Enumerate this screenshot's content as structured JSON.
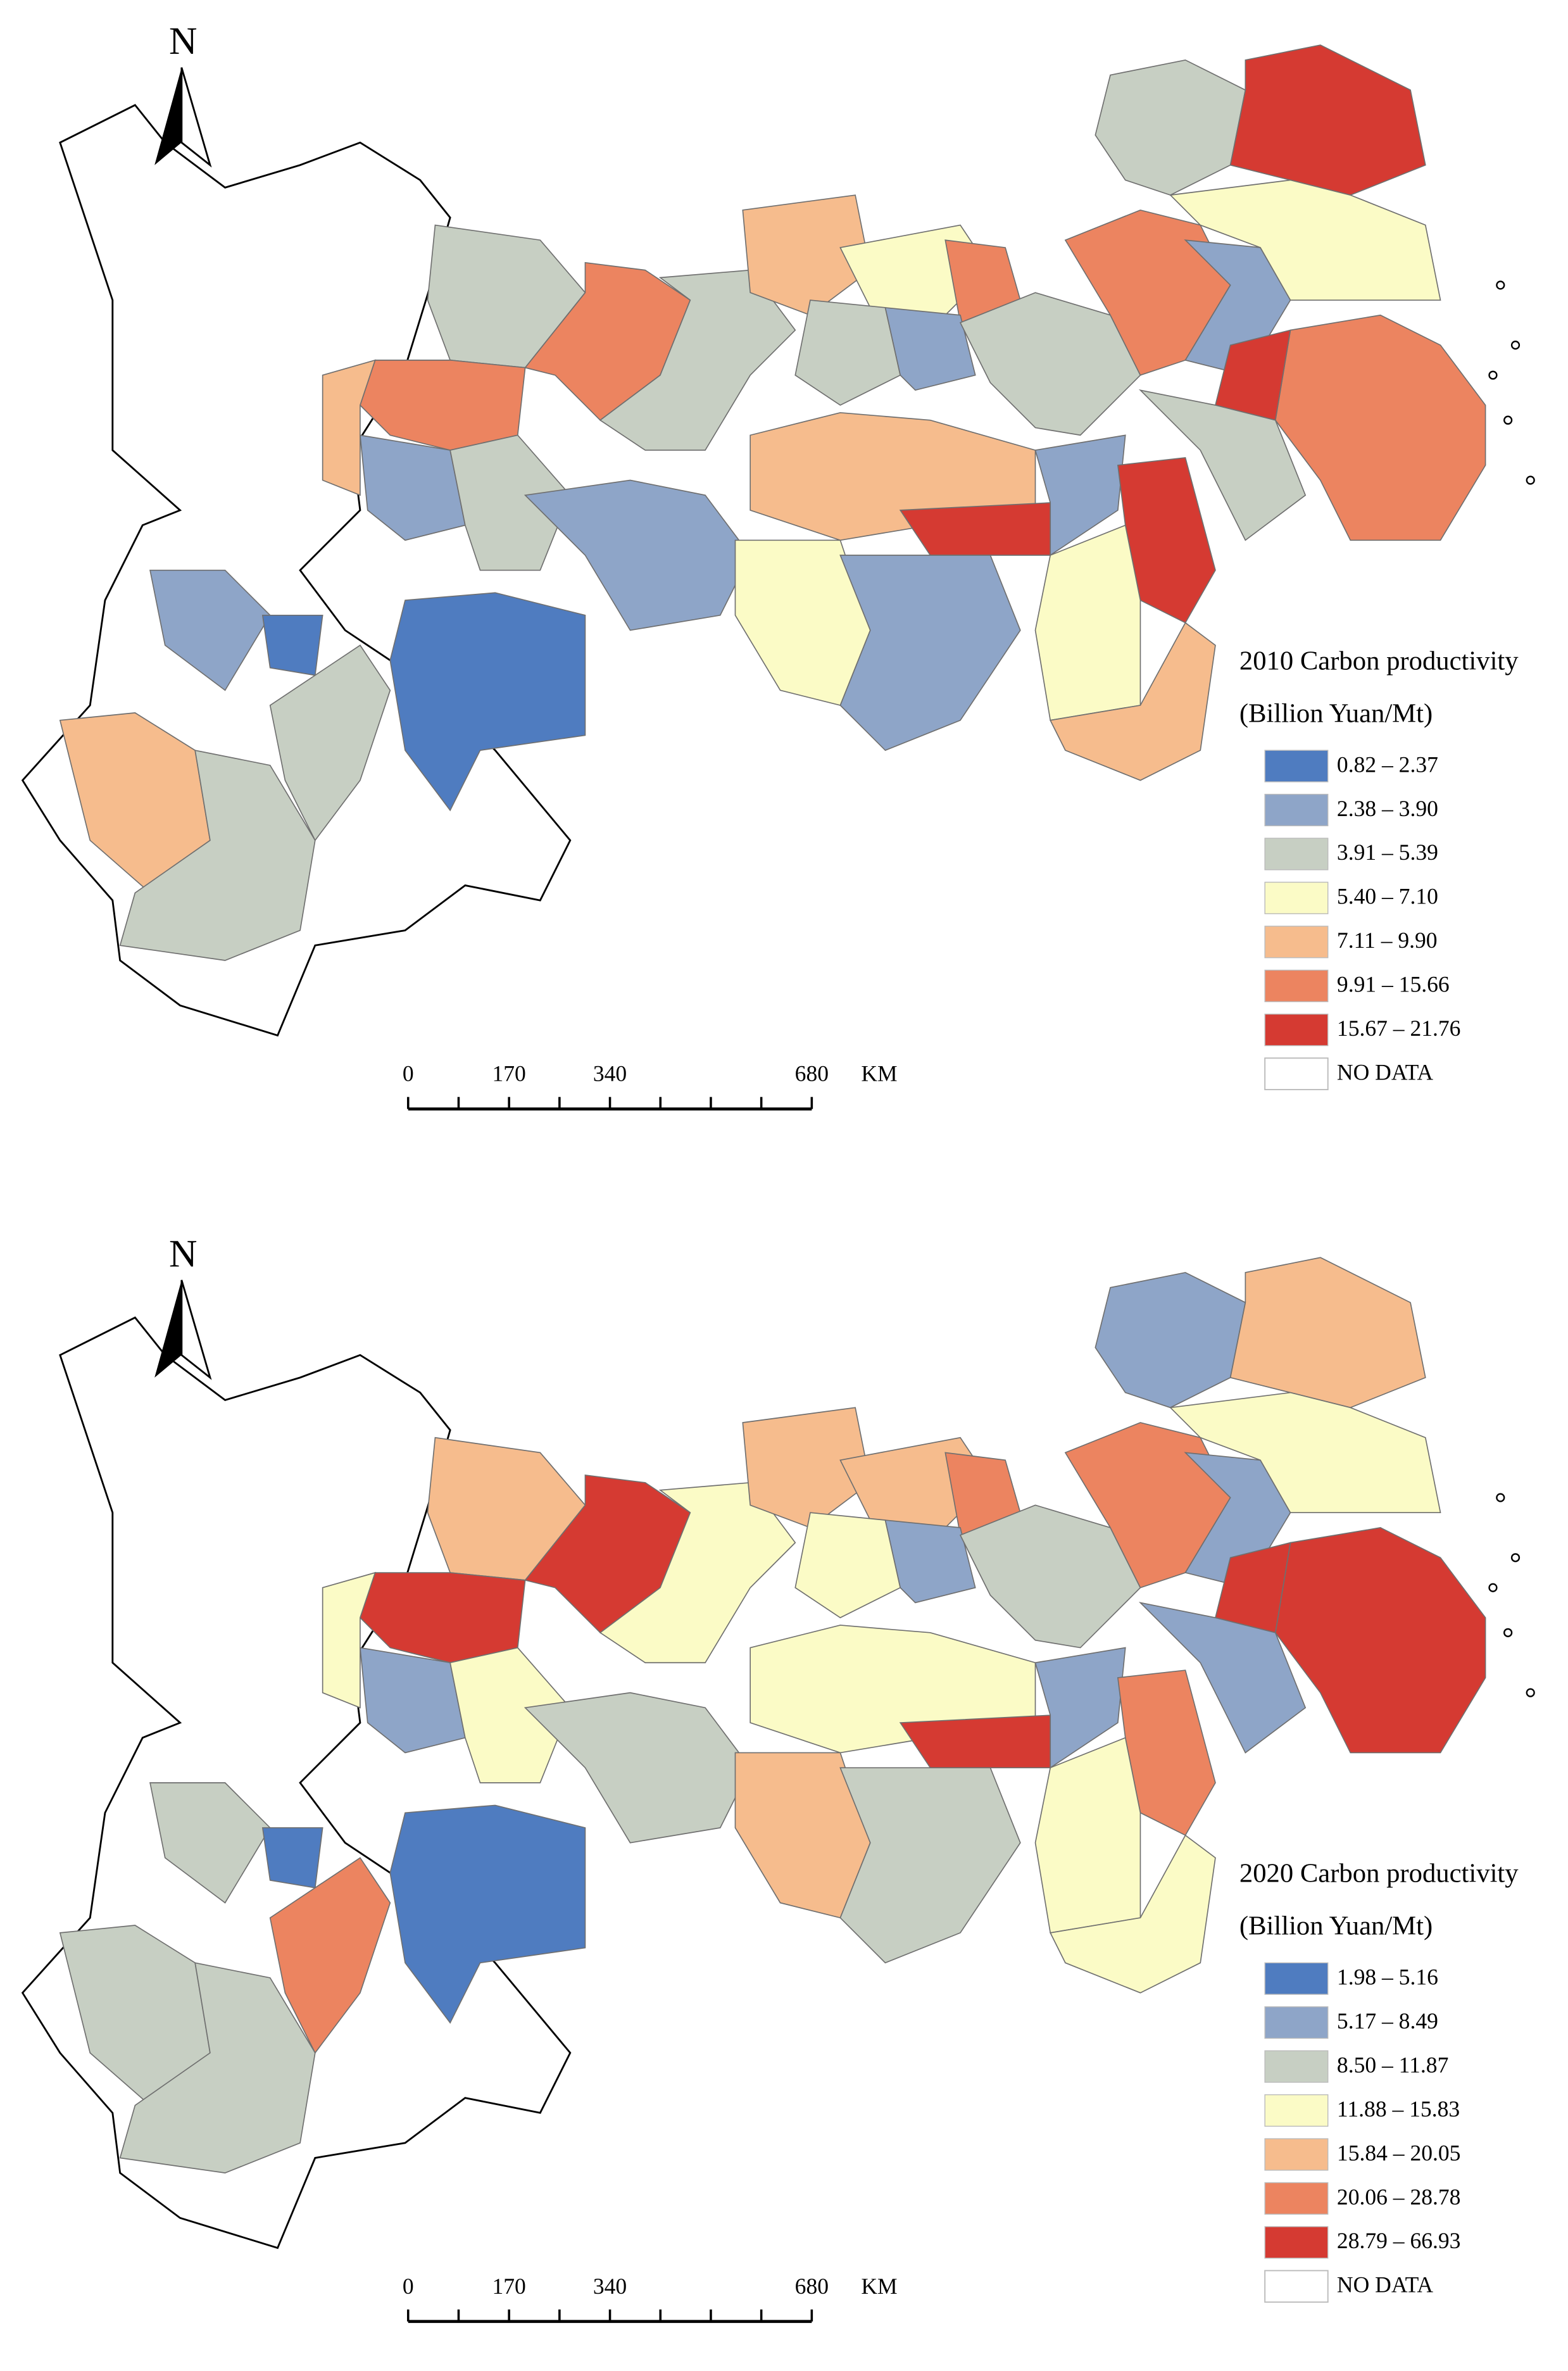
{
  "maps": [
    {
      "north": "N",
      "scale_bar": {
        "ticks": [
          0,
          170,
          340,
          680
        ],
        "unit": "KM"
      },
      "legend": {
        "title": "2010 Carbon productivity",
        "unit": "(Billion Yuan/Mt)",
        "classes": [
          {
            "label": "0.82 – 2.37",
            "color": "#4f7cc0"
          },
          {
            "label": "2.38 – 3.90",
            "color": "#8ea5c8"
          },
          {
            "label": "3.91 – 5.39",
            "color": "#c7cfc3"
          },
          {
            "label": "5.40 – 7.10",
            "color": "#fbfbc6"
          },
          {
            "label": "7.11 – 9.90",
            "color": "#f6bc8d"
          },
          {
            "label": "9.91 – 15.66",
            "color": "#ec8460"
          },
          {
            "label": "15.67 – 21.76",
            "color": "#d53a32"
          }
        ],
        "no_data": "NO DATA"
      }
    },
    {
      "north": "N",
      "scale_bar": {
        "ticks": [
          0,
          170,
          340,
          680
        ],
        "unit": "KM"
      },
      "legend": {
        "title": "2020 Carbon productivity",
        "unit": "(Billion Yuan/Mt)",
        "classes": [
          {
            "label": "1.98 – 5.16",
            "color": "#4f7cc0"
          },
          {
            "label": "5.17 – 8.49",
            "color": "#8ea5c8"
          },
          {
            "label": "8.50 – 11.87",
            "color": "#c7cfc3"
          },
          {
            "label": "11.88 – 15.83",
            "color": "#fbfbc6"
          },
          {
            "label": "15.84 – 20.05",
            "color": "#f6bc8d"
          },
          {
            "label": "20.06 – 28.78",
            "color": "#ec8460"
          },
          {
            "label": "28.79 – 66.93",
            "color": "#d53a32"
          }
        ],
        "no_data": "NO DATA"
      }
    }
  ]
}
